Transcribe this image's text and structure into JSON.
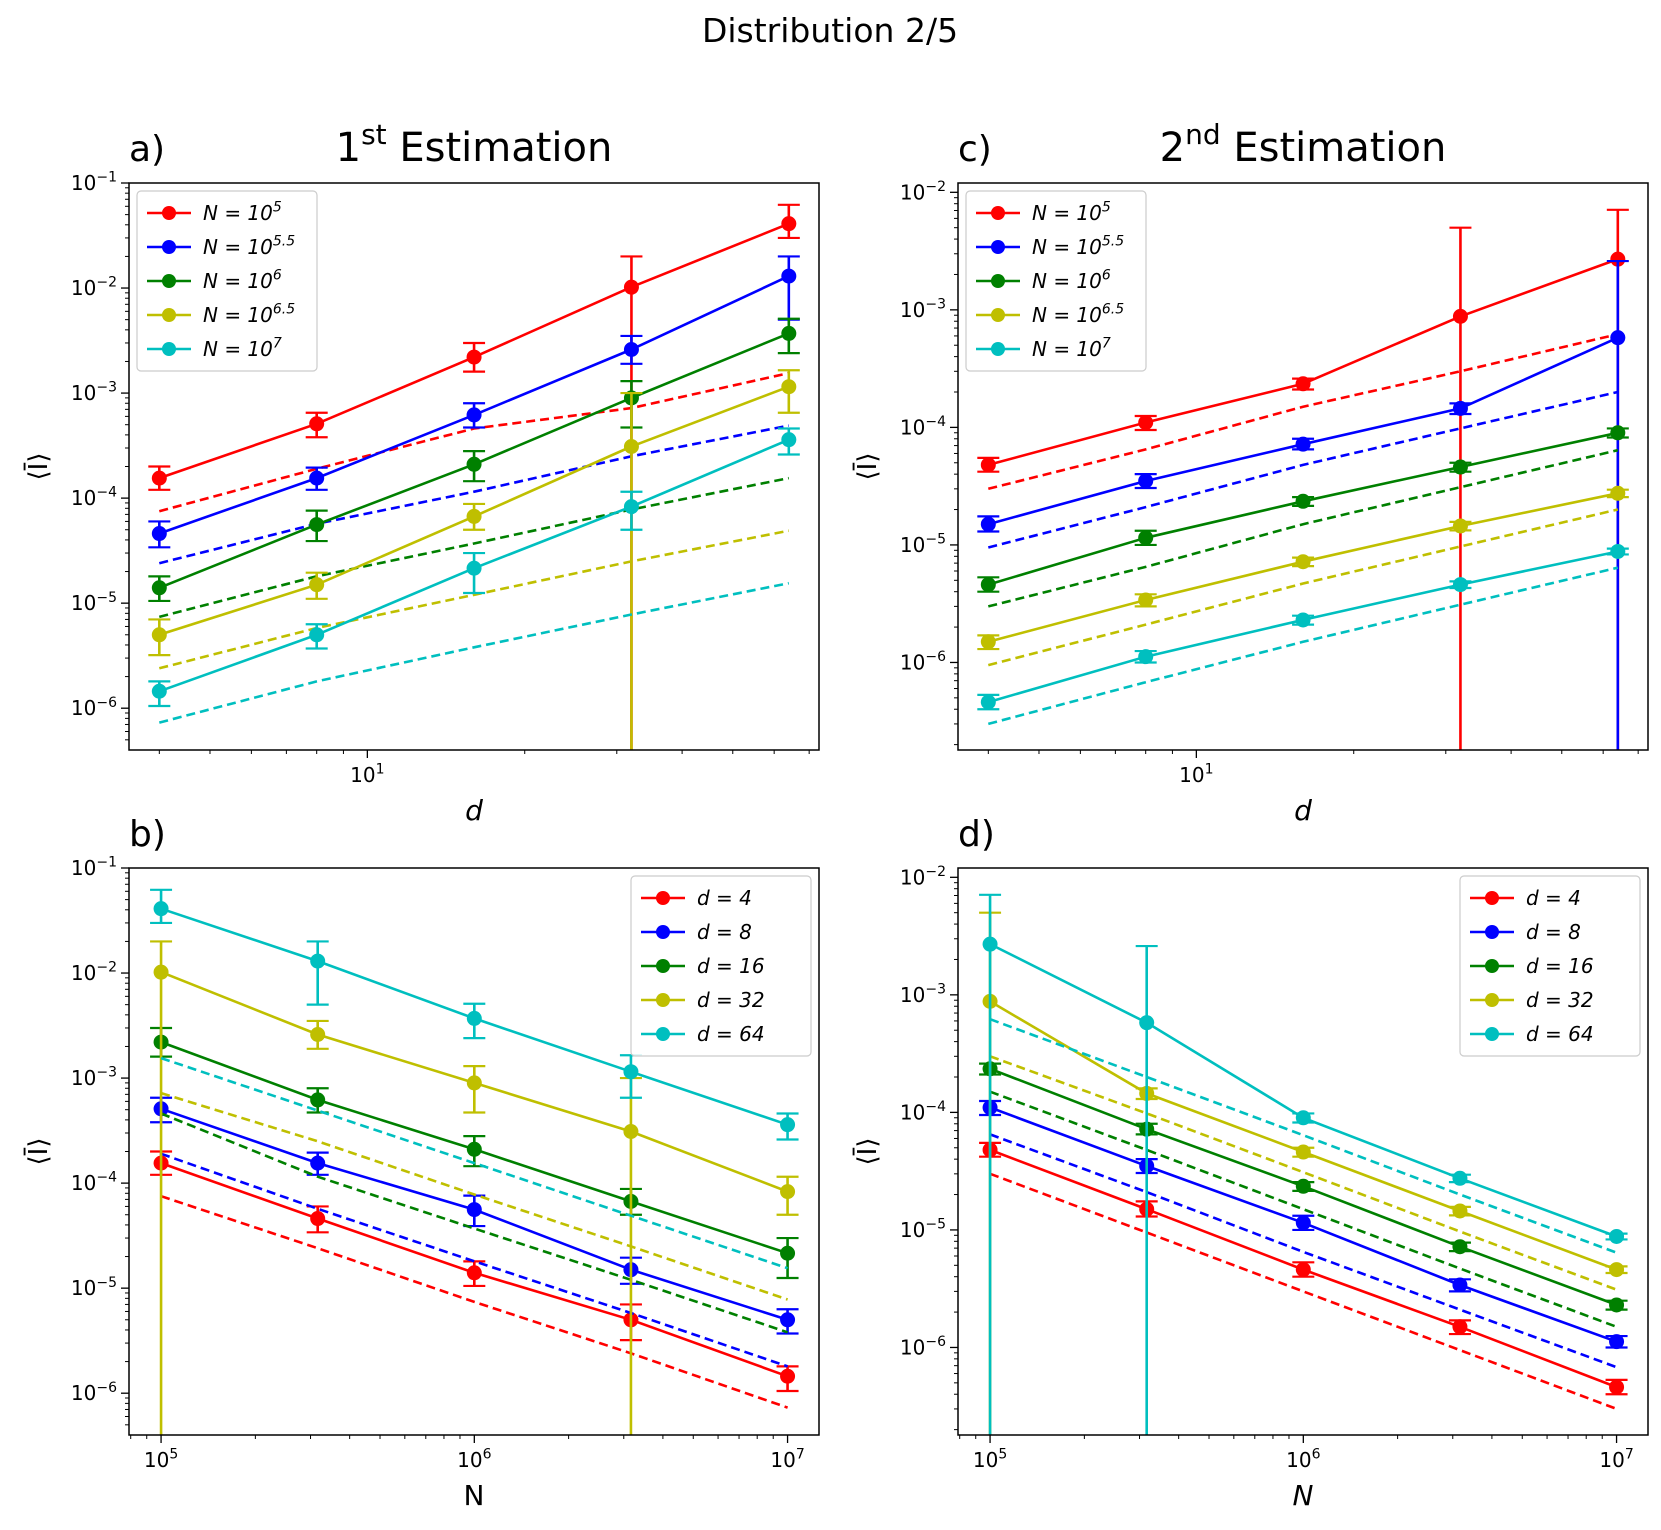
{
  "figure_title": "Distribution 2/5",
  "colors": {
    "red": "#ff0000",
    "blue": "#0000ff",
    "green": "#008000",
    "yellow": "#bfbf00",
    "cyan": "#00bfbf"
  },
  "chart_data": [
    {
      "id": "a",
      "panel_label": "a)",
      "title": {
        "base": "1",
        "sup": "st",
        "rest": " Estimation"
      },
      "type": "line",
      "xscale": "log",
      "yscale": "log",
      "xlabel": "d",
      "ylabel": "⟨Ī⟩",
      "xlim": [
        3.5,
        73.1
      ],
      "ylim": [
        4e-07,
        0.1
      ],
      "xticks": [
        {
          "v": 10,
          "base": "10",
          "exp": "1"
        }
      ],
      "yticks": [
        {
          "v": 1e-06,
          "exp": "−6"
        },
        {
          "v": 1e-05,
          "exp": "−5"
        },
        {
          "v": 0.0001,
          "exp": "−4"
        },
        {
          "v": 0.001,
          "exp": "−3"
        },
        {
          "v": 0.01,
          "exp": "−2"
        },
        {
          "v": 0.1,
          "exp": "−1"
        }
      ],
      "legend": {
        "position": "top-left",
        "entries": [
          {
            "label": "N = 10",
            "sup": "5",
            "color": "#ff0000"
          },
          {
            "label": "N = 10",
            "sup": "5.5",
            "color": "#0000ff"
          },
          {
            "label": "N = 10",
            "sup": "6",
            "color": "#008000"
          },
          {
            "label": "N = 10",
            "sup": "6.5",
            "color": "#bfbf00"
          },
          {
            "label": "N = 10",
            "sup": "7",
            "color": "#00bfbf"
          }
        ]
      },
      "x": [
        4,
        8,
        16,
        32,
        64
      ],
      "series": [
        {
          "name": "N=10^5",
          "color": "#ff0000",
          "values": [
            0.000155,
            0.00051,
            0.0022,
            0.0102,
            0.041
          ],
          "err_lo": [
            0.00012,
            0.00038,
            0.0016,
            1e-09,
            0.03
          ],
          "err_hi": [
            0.0002,
            0.00065,
            0.003,
            0.02,
            0.062
          ],
          "dashed": [
            7.5e-05,
            0.00019,
            0.00046,
            0.00072,
            0.00155
          ]
        },
        {
          "name": "N=10^5.5",
          "color": "#0000ff",
          "values": [
            4.6e-05,
            0.000155,
            0.00062,
            0.0026,
            0.013
          ],
          "err_lo": [
            3.4e-05,
            0.00012,
            0.00047,
            0.0019,
            0.005
          ],
          "err_hi": [
            6e-05,
            0.000195,
            0.0008,
            0.0035,
            0.02
          ],
          "dashed": [
            2.4e-05,
            5.7e-05,
            0.000115,
            0.00025,
            0.00049
          ]
        },
        {
          "name": "N=10^6",
          "color": "#008000",
          "values": [
            1.4e-05,
            5.6e-05,
            0.00021,
            0.0009,
            0.0037
          ],
          "err_lo": [
            1.05e-05,
            3.9e-05,
            0.000145,
            0.00047,
            0.0024
          ],
          "err_hi": [
            1.8e-05,
            7.6e-05,
            0.00028,
            0.0013,
            0.0051
          ],
          "dashed": [
            7.4e-06,
            1.8e-05,
            3.7e-05,
            7.8e-05,
            0.000155
          ]
        },
        {
          "name": "N=10^6.5",
          "color": "#bfbf00",
          "values": [
            5e-06,
            1.5e-05,
            6.7e-05,
            0.00031,
            0.00115
          ],
          "err_lo": [
            3.2e-06,
            1.1e-05,
            5e-05,
            1e-09,
            0.00065
          ],
          "err_hi": [
            7e-06,
            1.95e-05,
            8.8e-05,
            0.001,
            0.00165
          ],
          "dashed": [
            2.4e-06,
            5.8e-06,
            1.2e-05,
            2.5e-05,
            4.9e-05
          ]
        },
        {
          "name": "N=10^7",
          "color": "#00bfbf",
          "values": [
            1.45e-06,
            5e-06,
            2.15e-05,
            8.3e-05,
            0.00036
          ],
          "err_lo": [
            1.05e-06,
            3.7e-06,
            1.25e-05,
            5e-05,
            0.00026
          ],
          "err_hi": [
            1.8e-06,
            6.3e-06,
            3e-05,
            0.000115,
            0.00046
          ],
          "dashed": [
            7.3e-07,
            1.8e-06,
            3.8e-06,
            7.8e-06,
            1.55e-05
          ]
        }
      ]
    },
    {
      "id": "c",
      "panel_label": "c)",
      "title": {
        "base": "2",
        "sup": "nd",
        "rest": " Estimation"
      },
      "type": "line",
      "xscale": "log",
      "yscale": "log",
      "xlabel": "d",
      "ylabel": "⟨Ī⟩",
      "xlim": [
        3.5,
        73.1
      ],
      "ylim": [
        1.8e-07,
        0.012
      ],
      "xticks": [
        {
          "v": 10,
          "base": "10",
          "exp": "1"
        }
      ],
      "yticks": [
        {
          "v": 1e-06,
          "exp": "−6"
        },
        {
          "v": 1e-05,
          "exp": "−5"
        },
        {
          "v": 0.0001,
          "exp": "−4"
        },
        {
          "v": 0.001,
          "exp": "−3"
        },
        {
          "v": 0.01,
          "exp": "−2"
        }
      ],
      "legend": {
        "position": "top-left",
        "entries": [
          {
            "label": "N = 10",
            "sup": "5",
            "color": "#ff0000"
          },
          {
            "label": "N = 10",
            "sup": "5.5",
            "color": "#0000ff"
          },
          {
            "label": "N = 10",
            "sup": "6",
            "color": "#008000"
          },
          {
            "label": "N = 10",
            "sup": "6.5",
            "color": "#bfbf00"
          },
          {
            "label": "N = 10",
            "sup": "7",
            "color": "#00bfbf"
          }
        ]
      },
      "x": [
        4,
        8,
        16,
        32,
        64
      ],
      "series": [
        {
          "name": "N=10^5",
          "color": "#ff0000",
          "values": [
            4.8e-05,
            0.00011,
            0.000235,
            0.00088,
            0.0027
          ],
          "err_lo": [
            4.2e-05,
            9.5e-05,
            0.00021,
            1e-09,
            1e-09
          ],
          "err_hi": [
            5.5e-05,
            0.000125,
            0.00026,
            0.005,
            0.0071
          ],
          "dashed": [
            3e-05,
            6.5e-05,
            0.00015,
            0.0003,
            0.00062
          ]
        },
        {
          "name": "N=10^5.5",
          "color": "#0000ff",
          "values": [
            1.5e-05,
            3.5e-05,
            7.2e-05,
            0.000145,
            0.00058
          ],
          "err_lo": [
            1.3e-05,
            3.05e-05,
            6.5e-05,
            0.00013,
            1e-09
          ],
          "err_hi": [
            1.75e-05,
            4e-05,
            8e-05,
            0.00016,
            0.0026
          ],
          "dashed": [
            9.5e-06,
            2.1e-05,
            4.8e-05,
            9.8e-05,
            0.0002
          ]
        },
        {
          "name": "N=10^6",
          "color": "#008000",
          "values": [
            4.6e-06,
            1.15e-05,
            2.35e-05,
            4.6e-05,
            9e-05
          ],
          "err_lo": [
            4e-06,
            1e-05,
            2.15e-05,
            4.2e-05,
            8.2e-05
          ],
          "err_hi": [
            5.3e-06,
            1.32e-05,
            2.55e-05,
            5e-05,
            9.8e-05
          ],
          "dashed": [
            3e-06,
            6.5e-06,
            1.5e-05,
            3.1e-05,
            6.4e-05
          ]
        },
        {
          "name": "N=10^6.5",
          "color": "#bfbf00",
          "values": [
            1.5e-06,
            3.4e-06,
            7.2e-06,
            1.45e-05,
            2.75e-05
          ],
          "err_lo": [
            1.3e-06,
            3e-06,
            6.6e-06,
            1.33e-05,
            2.55e-05
          ],
          "err_hi": [
            1.7e-06,
            3.8e-06,
            7.8e-06,
            1.57e-05,
            2.95e-05
          ],
          "dashed": [
            9.5e-07,
            2.1e-06,
            4.7e-06,
            9.7e-06,
            2e-05
          ]
        },
        {
          "name": "N=10^7",
          "color": "#00bfbf",
          "values": [
            4.6e-07,
            1.12e-06,
            2.3e-06,
            4.6e-06,
            8.8e-06
          ],
          "err_lo": [
            4e-07,
            1e-06,
            2.1e-06,
            4.3e-06,
            8.3e-06
          ],
          "err_hi": [
            5.3e-07,
            1.25e-06,
            2.5e-06,
            4.9e-06,
            9.3e-06
          ],
          "dashed": [
            3e-07,
            6.8e-07,
            1.5e-06,
            3.1e-06,
            6.4e-06
          ]
        }
      ]
    },
    {
      "id": "b",
      "panel_label": "b)",
      "title": null,
      "type": "line",
      "xscale": "log",
      "yscale": "log",
      "xlabel": "N",
      "ylabel": "⟨Ī⟩",
      "xlim": [
        79000.0,
        12600000.0
      ],
      "ylim": [
        4e-07,
        0.1
      ],
      "xticks": [
        {
          "v": 100000.0,
          "base": "10",
          "exp": "5"
        },
        {
          "v": 1000000.0,
          "base": "10",
          "exp": "6"
        },
        {
          "v": 10000000.0,
          "base": "10",
          "exp": "7"
        }
      ],
      "yticks": [
        {
          "v": 1e-06,
          "exp": "−6"
        },
        {
          "v": 1e-05,
          "exp": "−5"
        },
        {
          "v": 0.0001,
          "exp": "−4"
        },
        {
          "v": 0.001,
          "exp": "−3"
        },
        {
          "v": 0.01,
          "exp": "−2"
        },
        {
          "v": 0.1,
          "exp": "−1"
        }
      ],
      "legend": {
        "position": "top-right",
        "entries": [
          {
            "label": "d = 4",
            "sup": "",
            "color": "#ff0000"
          },
          {
            "label": "d = 8",
            "sup": "",
            "color": "#0000ff"
          },
          {
            "label": "d = 16",
            "sup": "",
            "color": "#008000"
          },
          {
            "label": "d = 32",
            "sup": "",
            "color": "#bfbf00"
          },
          {
            "label": "d = 64",
            "sup": "",
            "color": "#00bfbf"
          }
        ]
      },
      "x": [
        100000,
        316228,
        1000000,
        3162278,
        10000000
      ],
      "series": [
        {
          "name": "d=4",
          "color": "#ff0000",
          "values": [
            0.000155,
            4.6e-05,
            1.4e-05,
            5e-06,
            1.45e-06
          ],
          "err_lo": [
            0.00012,
            3.4e-05,
            1.05e-05,
            3.2e-06,
            1.05e-06
          ],
          "err_hi": [
            0.0002,
            6e-05,
            1.8e-05,
            7e-06,
            1.8e-06
          ],
          "dashed": [
            7.5e-05,
            2.4e-05,
            7.4e-06,
            2.4e-06,
            7.3e-07
          ]
        },
        {
          "name": "d=8",
          "color": "#0000ff",
          "values": [
            0.00051,
            0.000155,
            5.6e-05,
            1.5e-05,
            5e-06
          ],
          "err_lo": [
            0.00038,
            0.00012,
            3.9e-05,
            1.1e-05,
            3.7e-06
          ],
          "err_hi": [
            0.00065,
            0.000195,
            7.6e-05,
            1.95e-05,
            6.3e-06
          ],
          "dashed": [
            0.00019,
            5.7e-05,
            1.8e-05,
            5.8e-06,
            1.8e-06
          ]
        },
        {
          "name": "d=16",
          "color": "#008000",
          "values": [
            0.0022,
            0.00062,
            0.00021,
            6.7e-05,
            2.15e-05
          ],
          "err_lo": [
            0.0016,
            0.00047,
            0.000145,
            5e-05,
            1.25e-05
          ],
          "err_hi": [
            0.003,
            0.0008,
            0.00028,
            8.8e-05,
            3e-05
          ],
          "dashed": [
            0.00046,
            0.000115,
            3.7e-05,
            1.2e-05,
            3.8e-06
          ]
        },
        {
          "name": "d=32",
          "color": "#bfbf00",
          "values": [
            0.0102,
            0.0026,
            0.0009,
            0.00031,
            8.3e-05
          ],
          "err_lo": [
            1e-09,
            0.0019,
            0.00047,
            1e-09,
            5e-05
          ],
          "err_hi": [
            0.02,
            0.0035,
            0.0013,
            0.001,
            0.000115
          ],
          "dashed": [
            0.00072,
            0.00025,
            7.8e-05,
            2.5e-05,
            7.8e-06
          ]
        },
        {
          "name": "d=64",
          "color": "#00bfbf",
          "values": [
            0.041,
            0.013,
            0.0037,
            0.00115,
            0.00036
          ],
          "err_lo": [
            0.03,
            0.005,
            0.0024,
            0.00065,
            0.00026
          ],
          "err_hi": [
            0.062,
            0.02,
            0.0051,
            0.00165,
            0.00046
          ],
          "dashed": [
            0.00155,
            0.00049,
            0.000155,
            4.9e-05,
            1.55e-05
          ]
        }
      ]
    },
    {
      "id": "d",
      "panel_label": "d)",
      "title": null,
      "type": "line",
      "xscale": "log",
      "yscale": "log",
      "xlabel": "N",
      "ylabel": "⟨Ī⟩",
      "xlim": [
        79000.0,
        12600000.0
      ],
      "ylim": [
        1.8e-07,
        0.012
      ],
      "xticks": [
        {
          "v": 100000.0,
          "base": "10",
          "exp": "5"
        },
        {
          "v": 1000000.0,
          "base": "10",
          "exp": "6"
        },
        {
          "v": 10000000.0,
          "base": "10",
          "exp": "7"
        }
      ],
      "yticks": [
        {
          "v": 1e-06,
          "exp": "−6"
        },
        {
          "v": 1e-05,
          "exp": "−5"
        },
        {
          "v": 0.0001,
          "exp": "−4"
        },
        {
          "v": 0.001,
          "exp": "−3"
        },
        {
          "v": 0.01,
          "exp": "−2"
        }
      ],
      "legend": {
        "position": "top-right",
        "entries": [
          {
            "label": "d = 4",
            "sup": "",
            "color": "#ff0000"
          },
          {
            "label": "d = 8",
            "sup": "",
            "color": "#0000ff"
          },
          {
            "label": "d = 16",
            "sup": "",
            "color": "#008000"
          },
          {
            "label": "d = 32",
            "sup": "",
            "color": "#bfbf00"
          },
          {
            "label": "d = 64",
            "sup": "",
            "color": "#00bfbf"
          }
        ]
      },
      "x": [
        100000,
        316228,
        1000000,
        3162278,
        10000000
      ],
      "series": [
        {
          "name": "d=4",
          "color": "#ff0000",
          "values": [
            4.8e-05,
            1.5e-05,
            4.6e-06,
            1.5e-06,
            4.6e-07
          ],
          "err_lo": [
            4.2e-05,
            1.3e-05,
            4e-06,
            1.3e-06,
            4e-07
          ],
          "err_hi": [
            5.5e-05,
            1.75e-05,
            5.3e-06,
            1.7e-06,
            5.3e-07
          ],
          "dashed": [
            3e-05,
            9.5e-06,
            3e-06,
            9.5e-07,
            3e-07
          ]
        },
        {
          "name": "d=8",
          "color": "#0000ff",
          "values": [
            0.00011,
            3.5e-05,
            1.15e-05,
            3.4e-06,
            1.12e-06
          ],
          "err_lo": [
            9.5e-05,
            3.05e-05,
            1e-05,
            3e-06,
            1e-06
          ],
          "err_hi": [
            0.000125,
            4e-05,
            1.32e-05,
            3.8e-06,
            1.25e-06
          ],
          "dashed": [
            6.5e-05,
            2.1e-05,
            6.5e-06,
            2.1e-06,
            6.8e-07
          ]
        },
        {
          "name": "d=16",
          "color": "#008000",
          "values": [
            0.000235,
            7.2e-05,
            2.35e-05,
            7.2e-06,
            2.3e-06
          ],
          "err_lo": [
            0.00021,
            6.5e-05,
            2.15e-05,
            6.6e-06,
            2.1e-06
          ],
          "err_hi": [
            0.00026,
            8e-05,
            2.55e-05,
            7.8e-06,
            2.5e-06
          ],
          "dashed": [
            0.00015,
            4.8e-05,
            1.5e-05,
            4.7e-06,
            1.5e-06
          ]
        },
        {
          "name": "d=32",
          "color": "#bfbf00",
          "values": [
            0.00088,
            0.000145,
            4.6e-05,
            1.45e-05,
            4.6e-06
          ],
          "err_lo": [
            1e-09,
            0.00013,
            4.2e-05,
            1.33e-05,
            4.3e-06
          ],
          "err_hi": [
            0.005,
            0.00016,
            5e-05,
            1.57e-05,
            4.9e-06
          ],
          "dashed": [
            0.0003,
            9.8e-05,
            3.1e-05,
            9.7e-06,
            3.1e-06
          ]
        },
        {
          "name": "d=64",
          "color": "#00bfbf",
          "values": [
            0.0027,
            0.00058,
            9e-05,
            2.75e-05,
            8.8e-06
          ],
          "err_lo": [
            1e-09,
            1e-09,
            8.2e-05,
            2.55e-05,
            8.3e-06
          ],
          "err_hi": [
            0.0071,
            0.0026,
            9.8e-05,
            2.95e-05,
            9.3e-06
          ],
          "dashed": [
            0.00062,
            0.0002,
            6.4e-05,
            2e-05,
            6.4e-06
          ]
        }
      ]
    }
  ]
}
